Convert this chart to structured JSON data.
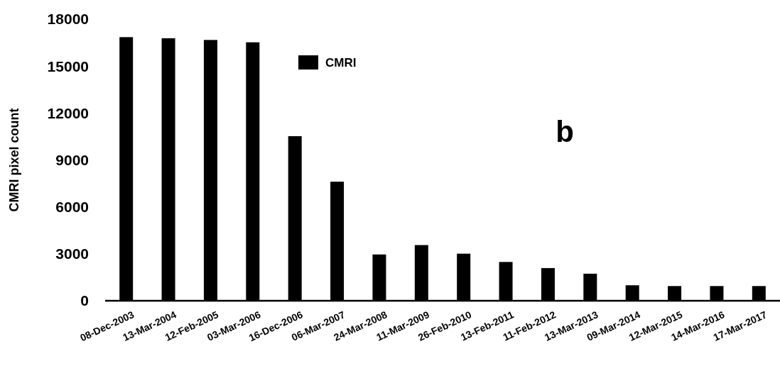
{
  "chart_data": {
    "type": "bar",
    "ylabel": "CMRI pixel count",
    "categories": [
      "08-Dec-2003",
      "13-Mar-2004",
      "12-Feb-2005",
      "03-Mar-2006",
      "16-Dec-2006",
      "06-Mar-2007",
      "24-Mar-2008",
      "11-Mar-2009",
      "26-Feb-2010",
      "13-Feb-2011",
      "11-Feb-2012",
      "13-Mar-2013",
      "09-Mar-2014",
      "12-Mar-2015",
      "14-Mar-2016",
      "17-Mar-2017"
    ],
    "series": [
      {
        "name": "CMRI",
        "color": "#000000",
        "values": [
          16850,
          16780,
          16670,
          16520,
          10520,
          7610,
          2960,
          3560,
          3010,
          2480,
          2090,
          1730,
          990,
          940,
          940,
          940
        ]
      }
    ],
    "ylim": [
      0,
      18000
    ],
    "yticks": [
      0,
      3000,
      6000,
      9000,
      12000,
      15000,
      18000
    ],
    "legend": "top",
    "annotations": [
      "b"
    ]
  }
}
